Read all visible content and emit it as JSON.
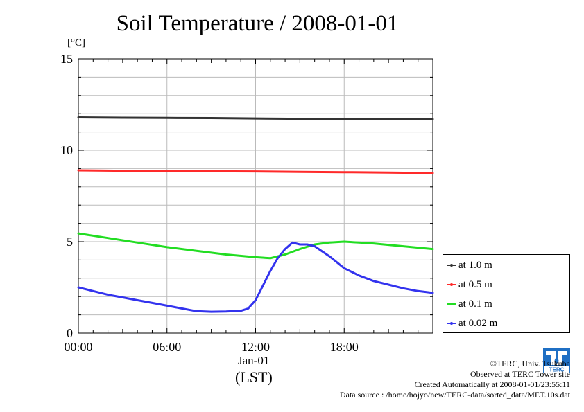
{
  "chart_data": {
    "type": "line",
    "title": "Soil Temperature / 2008-01-01",
    "ylabel": "[°C]",
    "xlabel_date": "Jan-01",
    "xlabel_tz": "(LST)",
    "x_ticks": [
      "00:00",
      "06:00",
      "12:00",
      "18:00"
    ],
    "y_ticks": [
      "0",
      "5",
      "10",
      "15"
    ],
    "xlim_hours": [
      0,
      24
    ],
    "ylim": [
      0,
      15
    ],
    "grid": true,
    "legend_position": "right-bottom",
    "series": [
      {
        "name": "at 1.0 m",
        "color": "#333333",
        "x": [
          0,
          3,
          6,
          9,
          12,
          15,
          18,
          21,
          24
        ],
        "y": [
          11.8,
          11.78,
          11.77,
          11.76,
          11.74,
          11.72,
          11.72,
          11.71,
          11.7
        ]
      },
      {
        "name": "at 0.5 m",
        "color": "#ff2a2a",
        "x": [
          0,
          3,
          6,
          9,
          12,
          15,
          18,
          21,
          24
        ],
        "y": [
          8.9,
          8.88,
          8.87,
          8.85,
          8.84,
          8.82,
          8.8,
          8.78,
          8.75
        ]
      },
      {
        "name": "at 0.1 m",
        "color": "#22dd22",
        "x": [
          0,
          2,
          4,
          6,
          8,
          10,
          12,
          13,
          14,
          15,
          16,
          17,
          18,
          19,
          20,
          22,
          24
        ],
        "y": [
          5.45,
          5.2,
          4.95,
          4.7,
          4.5,
          4.3,
          4.15,
          4.1,
          4.3,
          4.6,
          4.85,
          4.95,
          5.0,
          4.95,
          4.9,
          4.75,
          4.6
        ]
      },
      {
        "name": "at 0.02 m",
        "color": "#3333ee",
        "x": [
          0,
          1,
          2,
          3,
          4,
          5,
          6,
          7,
          8,
          9,
          10,
          11,
          11.5,
          12,
          12.5,
          13,
          13.5,
          14,
          14.5,
          15,
          15.5,
          16,
          17,
          18,
          19,
          20,
          21,
          22,
          23,
          24
        ],
        "y": [
          2.5,
          2.3,
          2.1,
          1.95,
          1.8,
          1.65,
          1.5,
          1.35,
          1.2,
          1.17,
          1.18,
          1.22,
          1.35,
          1.8,
          2.6,
          3.4,
          4.1,
          4.6,
          4.95,
          4.85,
          4.85,
          4.75,
          4.2,
          3.55,
          3.15,
          2.85,
          2.65,
          2.45,
          2.3,
          2.2
        ]
      }
    ]
  },
  "credits": {
    "line1": "©TERC, Univ. Tsukuba",
    "line2": "Observed at TERC Tower site",
    "line3": "Created Automatically at 2008-01-01/23:55:11",
    "line4": "Data source : /home/hojyo/new/TERC-data/sorted_data/MET.10s.dat"
  },
  "logo": {
    "text": "TERC",
    "icon": "terc-logo-icon"
  }
}
